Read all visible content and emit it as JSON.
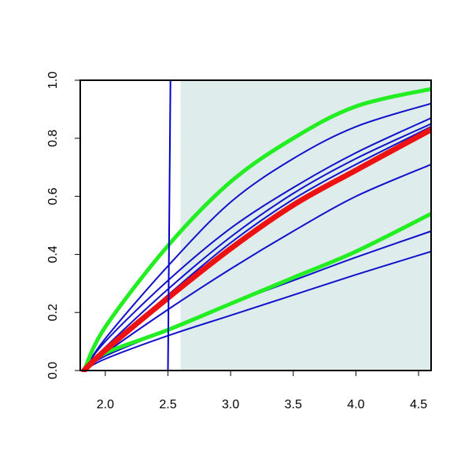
{
  "chart_data": {
    "type": "line",
    "title": "",
    "xlabel": "",
    "ylabel": "",
    "xlim": [
      1.8,
      4.6
    ],
    "ylim": [
      0,
      1
    ],
    "xticks": [
      2.0,
      2.5,
      3.0,
      3.5,
      4.0,
      4.5
    ],
    "xtick_labels": [
      "2.0",
      "2.5",
      "3.0",
      "3.5",
      "4.0",
      "4.5"
    ],
    "yticks": [
      0.0,
      0.2,
      0.4,
      0.6,
      0.8,
      1.0
    ],
    "ytick_labels": [
      "0.0",
      "0.2",
      "0.4",
      "0.6",
      "0.8",
      "1.0"
    ],
    "grid": false,
    "legend": "none",
    "shaded_region": {
      "x": [
        2.6,
        4.6
      ],
      "y": [
        0,
        1
      ],
      "color": "#deecec"
    },
    "step_curve": {
      "color": "#0000cc",
      "x": [
        1.8,
        2.5,
        2.52,
        4.6
      ],
      "y": [
        0.0,
        0.0,
        1.0,
        1.0
      ]
    },
    "series": [
      {
        "role": "reference",
        "color": "#ee1111",
        "x": [
          1.83,
          2.0,
          2.5,
          3.0,
          3.5,
          4.0,
          4.6
        ],
        "y": [
          0.0,
          0.07,
          0.25,
          0.42,
          0.57,
          0.69,
          0.83
        ]
      },
      {
        "role": "upper-bound",
        "color": "#22ee22",
        "x": [
          1.83,
          2.0,
          2.5,
          3.0,
          3.5,
          4.0,
          4.6
        ],
        "y": [
          0.0,
          0.15,
          0.43,
          0.65,
          0.8,
          0.91,
          0.97
        ]
      },
      {
        "role": "lower-bound",
        "color": "#22ee22",
        "x": [
          1.83,
          2.0,
          2.5,
          3.0,
          3.5,
          4.0,
          4.6
        ],
        "y": [
          0.0,
          0.06,
          0.14,
          0.23,
          0.32,
          0.41,
          0.54
        ]
      },
      {
        "role": "sample",
        "color": "#1111cc",
        "x": [
          1.83,
          2.0,
          2.5,
          3.0,
          3.5,
          4.0,
          4.6
        ],
        "y": [
          0.0,
          0.11,
          0.36,
          0.58,
          0.73,
          0.84,
          0.92
        ]
      },
      {
        "role": "sample",
        "color": "#1111cc",
        "x": [
          1.83,
          2.0,
          2.5,
          3.0,
          3.5,
          4.0,
          4.6
        ],
        "y": [
          0.0,
          0.1,
          0.31,
          0.49,
          0.63,
          0.75,
          0.87
        ]
      },
      {
        "role": "sample",
        "color": "#1111cc",
        "x": [
          1.83,
          2.0,
          2.5,
          3.0,
          3.5,
          4.0,
          4.6
        ],
        "y": [
          0.0,
          0.08,
          0.28,
          0.46,
          0.61,
          0.73,
          0.85
        ]
      },
      {
        "role": "sample",
        "color": "#1111cc",
        "x": [
          1.83,
          2.0,
          2.5,
          3.0,
          3.5,
          4.0,
          4.6
        ],
        "y": [
          0.0,
          0.07,
          0.26,
          0.44,
          0.59,
          0.71,
          0.84
        ]
      },
      {
        "role": "sample",
        "color": "#1111cc",
        "x": [
          1.83,
          2.0,
          2.5,
          3.0,
          3.5,
          4.0,
          4.6
        ],
        "y": [
          0.0,
          0.06,
          0.21,
          0.35,
          0.48,
          0.6,
          0.71
        ]
      },
      {
        "role": "sample",
        "color": "#1111cc",
        "x": [
          1.83,
          2.0,
          2.5,
          3.0,
          3.5,
          4.0,
          4.6
        ],
        "y": [
          0.0,
          0.05,
          0.14,
          0.23,
          0.31,
          0.39,
          0.48
        ]
      },
      {
        "role": "sample",
        "color": "#1111cc",
        "x": [
          1.83,
          2.0,
          2.5,
          3.0,
          3.5,
          4.0,
          4.6
        ],
        "y": [
          0.0,
          0.04,
          0.12,
          0.19,
          0.26,
          0.33,
          0.41
        ]
      }
    ]
  }
}
